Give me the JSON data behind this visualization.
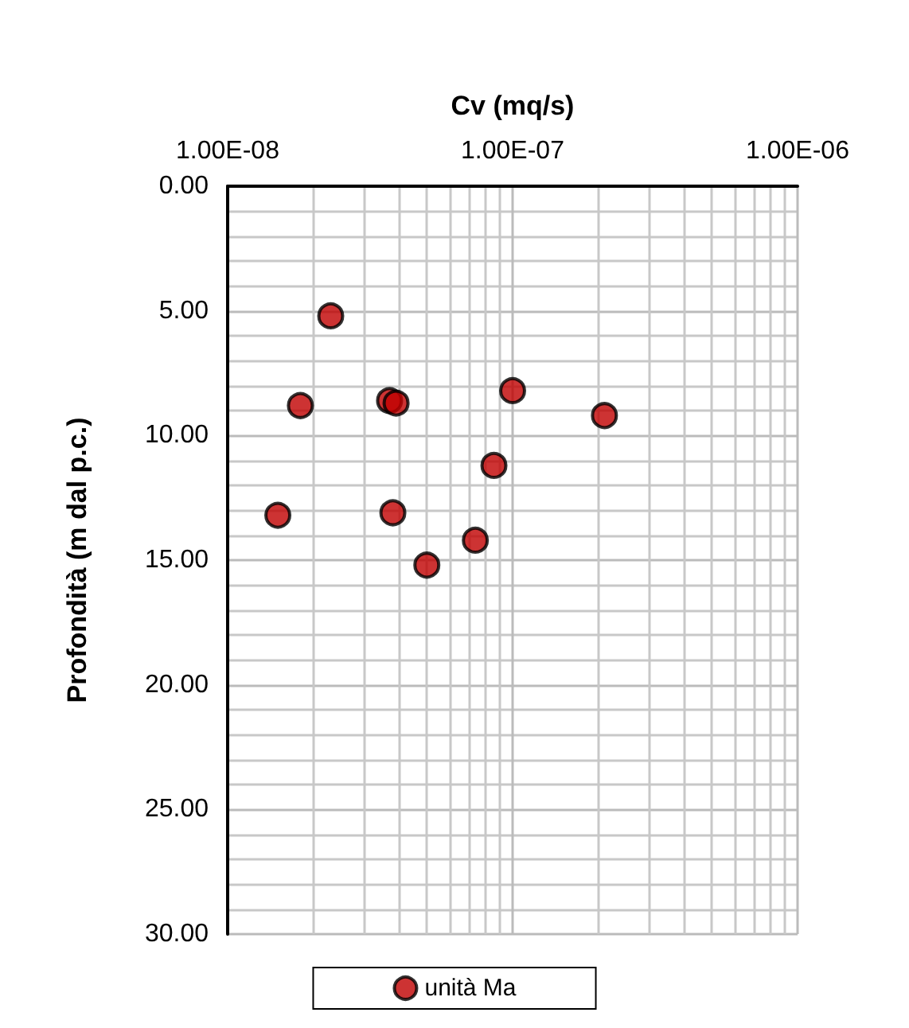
{
  "chart_data": {
    "type": "scatter",
    "xlabel": "Cv (mq/s)",
    "ylabel": "Profondità (m dal p.c.)",
    "log": "x",
    "xlim": [
      1e-08,
      1e-06
    ],
    "xticks": [
      {
        "value": 1e-08,
        "label": "1.00E-08"
      },
      {
        "value": 1e-07,
        "label": "1.00E-07"
      },
      {
        "value": 1e-06,
        "label": "1.00E-06"
      }
    ],
    "ylim": [
      30,
      0
    ],
    "yticks": [
      {
        "value": 0,
        "label": "0.00"
      },
      {
        "value": 5,
        "label": "5.00"
      },
      {
        "value": 10,
        "label": "10.00"
      },
      {
        "value": 15,
        "label": "15.00"
      },
      {
        "value": 20,
        "label": "20.00"
      },
      {
        "value": 25,
        "label": "25.00"
      },
      {
        "value": 30,
        "label": "30.00"
      }
    ],
    "grid": true,
    "legend": "bottom",
    "marker": "circle",
    "series": [
      {
        "name": "unità Ma",
        "color": "#c00000",
        "x": [
          2.3e-08,
          1.8e-08,
          3.7e-08,
          3.9e-08,
          1e-07,
          2.1e-07,
          8.6e-08,
          1.5e-08,
          3.8e-08,
          7.4e-08,
          5e-08
        ],
        "values": [
          5.2,
          8.8,
          8.6,
          8.7,
          8.2,
          9.2,
          11.2,
          13.2,
          13.1,
          14.2,
          15.2
        ]
      }
    ]
  }
}
